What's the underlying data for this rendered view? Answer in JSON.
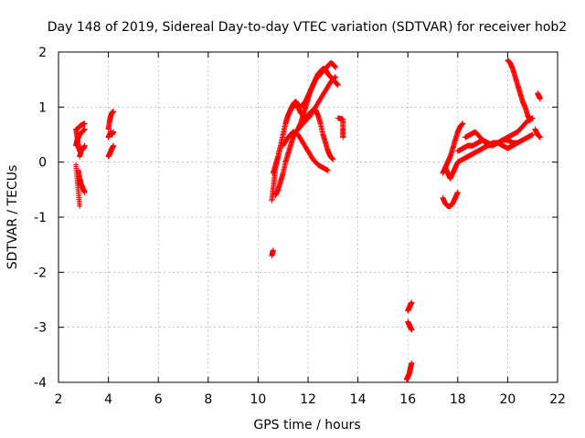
{
  "chart_data": {
    "type": "scatter",
    "title": "Day 148 of 2019, Sidereal Day-to-day VTEC variation (SDTVAR) for receiver hob2",
    "xlabel": "GPS time / hours",
    "ylabel": "SDTVAR / TECUs",
    "xlim": [
      2,
      22
    ],
    "ylim": [
      -4,
      2
    ],
    "xticks": [
      "2",
      "4",
      "6",
      "8",
      "10",
      "12",
      "14",
      "16",
      "18",
      "20",
      "22"
    ],
    "yticks": [
      "-4",
      "-3",
      "-2",
      "-1",
      "0",
      "1",
      "2"
    ],
    "grid": true,
    "marker_color": "#ff0000",
    "marker": "plus",
    "segments": [
      {
        "x": [
          2.7,
          2.75,
          2.8,
          2.85,
          2.9
        ],
        "y": [
          0.6,
          0.45,
          0.3,
          0.2,
          0.25
        ]
      },
      {
        "x": [
          2.75,
          2.85,
          2.95,
          3.05
        ],
        "y": [
          0.6,
          0.65,
          0.68,
          0.7
        ]
      },
      {
        "x": [
          2.7,
          2.75,
          2.85,
          2.95,
          3.05
        ],
        "y": [
          0.3,
          0.4,
          0.5,
          0.55,
          0.6
        ]
      },
      {
        "x": [
          2.7,
          2.75,
          2.8,
          2.85
        ],
        "y": [
          -0.05,
          -0.3,
          -0.55,
          -0.8
        ]
      },
      {
        "x": [
          2.8,
          2.85,
          2.9,
          2.95,
          3.0,
          3.05
        ],
        "y": [
          -0.15,
          -0.3,
          -0.4,
          -0.45,
          -0.5,
          -0.55
        ]
      },
      {
        "x": [
          2.85,
          2.9,
          3.0,
          3.05
        ],
        "y": [
          0.1,
          0.2,
          0.25,
          0.3
        ]
      },
      {
        "x": [
          4.0,
          4.05,
          4.1,
          4.15,
          4.2
        ],
        "y": [
          0.6,
          0.75,
          0.85,
          0.9,
          0.92
        ]
      },
      {
        "x": [
          4.0,
          4.05,
          4.1,
          4.15,
          4.2
        ],
        "y": [
          0.45,
          0.5,
          0.55,
          0.5,
          0.55
        ]
      },
      {
        "x": [
          4.0,
          4.05,
          4.1,
          4.15,
          4.2
        ],
        "y": [
          0.1,
          0.15,
          0.2,
          0.25,
          0.3
        ]
      },
      {
        "x": [
          10.55,
          10.6
        ],
        "y": [
          -1.7,
          -1.6
        ]
      },
      {
        "x": [
          10.55,
          10.6,
          10.65,
          10.7,
          10.8,
          10.9,
          11.0,
          11.1,
          11.2,
          11.3,
          11.4,
          11.5,
          11.6,
          11.7,
          11.8,
          11.9,
          12.0,
          12.1,
          12.2,
          12.3,
          12.4,
          12.5,
          12.6,
          12.7,
          12.8,
          12.9,
          13.0
        ],
        "y": [
          -0.7,
          -0.5,
          -0.3,
          -0.1,
          0.1,
          0.3,
          0.5,
          0.7,
          0.85,
          0.95,
          1.0,
          1.05,
          1.0,
          0.9,
          0.85,
          0.8,
          0.85,
          0.9,
          0.95,
          0.95,
          0.85,
          0.7,
          0.5,
          0.35,
          0.2,
          0.1,
          0.05
        ]
      },
      {
        "x": [
          10.6,
          10.7,
          10.8,
          10.9,
          11.0,
          11.1,
          11.2,
          11.3,
          11.4,
          11.5,
          11.6,
          11.7,
          11.8,
          11.9,
          12.0,
          12.1,
          12.2,
          12.3,
          12.4,
          12.5,
          12.6,
          12.7,
          12.8,
          12.9,
          13.0,
          13.1,
          13.2
        ],
        "y": [
          -0.2,
          -0.05,
          0.1,
          0.3,
          0.5,
          0.7,
          0.85,
          0.95,
          1.05,
          1.1,
          1.05,
          1.0,
          1.05,
          1.1,
          1.2,
          1.3,
          1.4,
          1.5,
          1.6,
          1.65,
          1.7,
          1.68,
          1.6,
          1.55,
          1.5,
          1.45,
          1.4
        ]
      },
      {
        "x": [
          10.7,
          10.8,
          10.9,
          11.0,
          11.1,
          11.2,
          11.3,
          11.4,
          11.5,
          11.6,
          11.7,
          11.8,
          11.9,
          12.0,
          12.1,
          12.2,
          12.3,
          12.4,
          12.5,
          12.6,
          12.7,
          12.8,
          12.9,
          13.0,
          13.1
        ],
        "y": [
          -0.6,
          -0.5,
          -0.35,
          -0.2,
          0.0,
          0.15,
          0.3,
          0.45,
          0.55,
          0.6,
          0.7,
          0.85,
          1.0,
          1.15,
          1.3,
          1.4,
          1.5,
          1.55,
          1.6,
          1.65,
          1.7,
          1.75,
          1.8,
          1.78,
          1.72
        ]
      },
      {
        "x": [
          11.0,
          11.2,
          11.4,
          11.6,
          11.8,
          12.0,
          12.2,
          12.4,
          12.6,
          12.8
        ],
        "y": [
          0.3,
          0.45,
          0.55,
          0.5,
          0.35,
          0.2,
          0.05,
          -0.05,
          -0.1,
          -0.15
        ]
      },
      {
        "x": [
          11.3,
          11.5,
          11.7,
          11.9,
          12.1,
          12.3,
          12.5,
          12.7,
          12.9,
          13.1
        ],
        "y": [
          0.5,
          0.55,
          0.65,
          0.75,
          0.85,
          1.0,
          1.15,
          1.3,
          1.45,
          1.55
        ]
      },
      {
        "x": [
          13.2,
          13.4,
          13.4,
          13.4
        ],
        "y": [
          0.8,
          0.78,
          0.6,
          0.45
        ]
      },
      {
        "x": [
          16.0,
          16.05,
          16.1,
          16.15
        ],
        "y": [
          -2.7,
          -2.65,
          -2.6,
          -2.55
        ]
      },
      {
        "x": [
          16.0,
          16.05,
          16.1,
          16.15
        ],
        "y": [
          -2.9,
          -2.95,
          -3.0,
          -3.05
        ]
      },
      {
        "x": [
          15.95,
          16.0,
          16.05,
          16.1,
          16.15
        ],
        "y": [
          -3.95,
          -3.9,
          -3.85,
          -3.75,
          -3.65
        ]
      },
      {
        "x": [
          17.4,
          17.5,
          17.6,
          17.7,
          17.8,
          17.9,
          18.0
        ],
        "y": [
          -0.65,
          -0.75,
          -0.8,
          -0.8,
          -0.75,
          -0.65,
          -0.55
        ]
      },
      {
        "x": [
          17.4,
          17.5,
          17.6,
          17.7,
          17.8,
          17.9,
          18.0,
          18.1,
          18.2
        ],
        "y": [
          -0.2,
          -0.1,
          0.0,
          0.1,
          0.25,
          0.4,
          0.55,
          0.65,
          0.7
        ]
      },
      {
        "x": [
          17.5,
          17.6,
          17.7,
          17.8,
          17.9,
          18.0,
          18.2,
          18.4,
          18.6,
          18.8,
          19.0,
          19.2,
          19.4,
          19.6,
          19.8,
          20.0,
          20.2,
          20.4,
          20.6,
          20.8,
          21.0
        ],
        "y": [
          -0.1,
          -0.2,
          -0.3,
          -0.2,
          -0.1,
          0.0,
          0.05,
          0.1,
          0.15,
          0.2,
          0.25,
          0.3,
          0.35,
          0.35,
          0.4,
          0.4,
          0.35,
          0.35,
          0.4,
          0.45,
          0.5
        ]
      },
      {
        "x": [
          18.0,
          18.2,
          18.4,
          18.6,
          18.8,
          19.0,
          19.2,
          19.4,
          19.6,
          19.8,
          20.0,
          20.2,
          20.4,
          20.6,
          20.8,
          21.0
        ],
        "y": [
          0.2,
          0.25,
          0.3,
          0.3,
          0.35,
          0.4,
          0.35,
          0.3,
          0.35,
          0.4,
          0.45,
          0.5,
          0.55,
          0.65,
          0.75,
          0.8
        ]
      },
      {
        "x": [
          18.3,
          18.5,
          18.7,
          18.9,
          19.1,
          19.3
        ],
        "y": [
          0.45,
          0.5,
          0.55,
          0.45,
          0.35,
          0.3
        ]
      },
      {
        "x": [
          19.6,
          19.8,
          20.0,
          20.2,
          20.4
        ],
        "y": [
          0.35,
          0.3,
          0.25,
          0.3,
          0.35
        ]
      },
      {
        "x": [
          20.0,
          20.1,
          20.2,
          20.3,
          20.4,
          20.5,
          20.6,
          20.7,
          20.8,
          20.9
        ],
        "y": [
          1.85,
          1.8,
          1.7,
          1.55,
          1.4,
          1.25,
          1.1,
          1.0,
          0.85,
          0.75
        ]
      },
      {
        "x": [
          21.2,
          21.25,
          21.3
        ],
        "y": [
          1.25,
          1.2,
          1.15
        ]
      },
      {
        "x": [
          21.1,
          21.2,
          21.3
        ],
        "y": [
          0.6,
          0.5,
          0.45
        ]
      }
    ]
  }
}
